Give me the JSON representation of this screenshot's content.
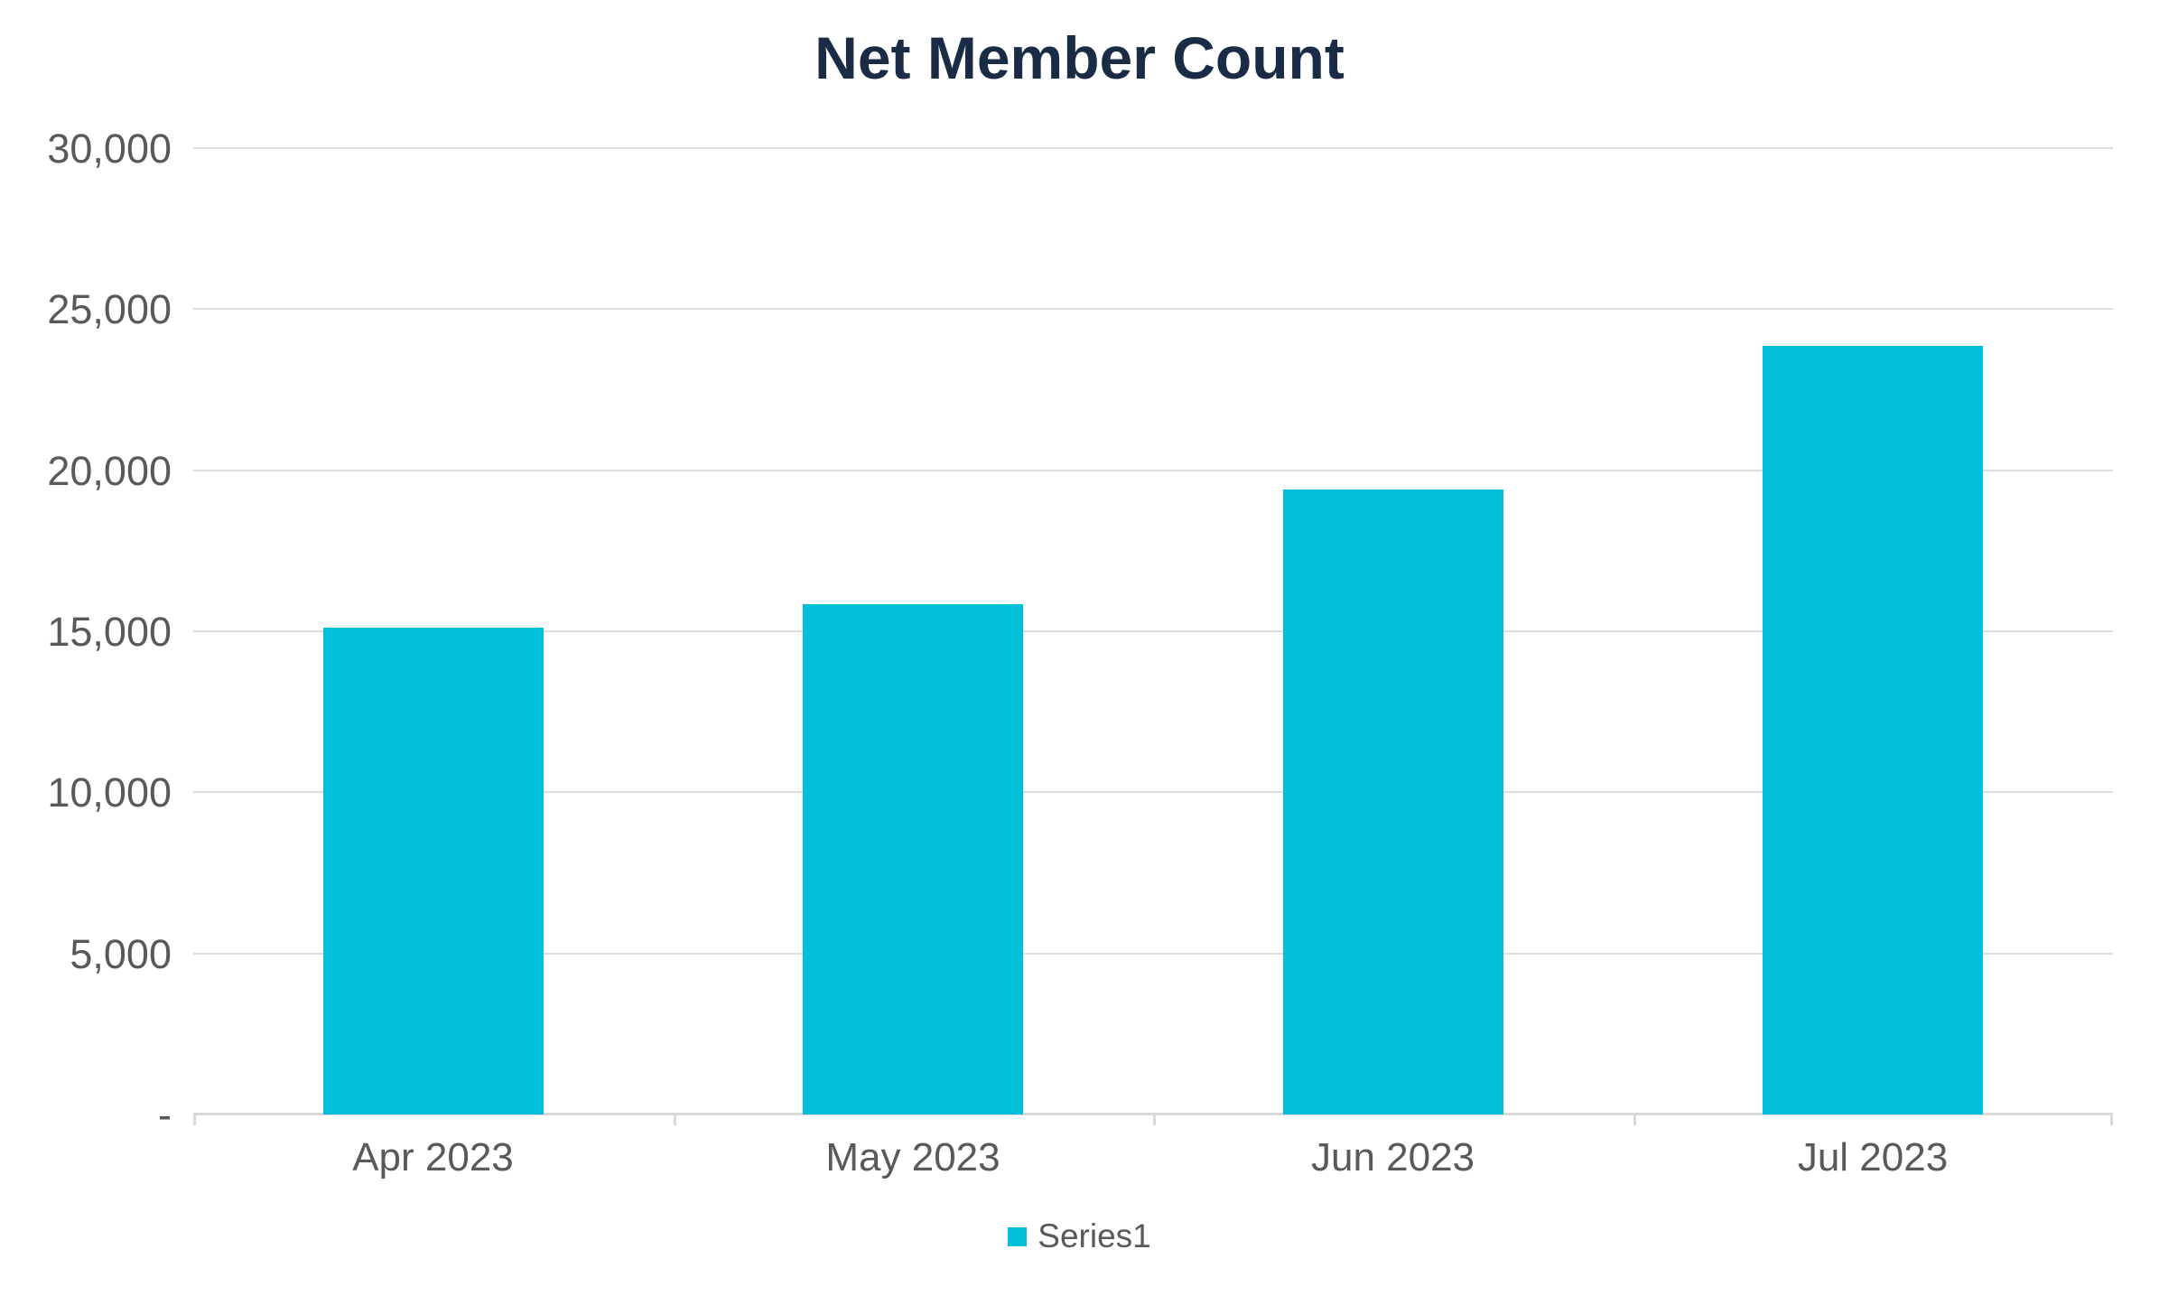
{
  "chart_data": {
    "type": "bar",
    "title": "Net Member Count",
    "categories": [
      "Apr 2023",
      "May 2023",
      "Jun 2023",
      "Jul 2023"
    ],
    "series": [
      {
        "name": "Series1",
        "values": [
          15100,
          15850,
          19400,
          23850
        ]
      }
    ],
    "xlabel": "",
    "ylabel": "",
    "ylim": [
      0,
      30000
    ],
    "ytick_interval": 5000,
    "ytick_labels_bottom_up": [
      "-",
      "5,000",
      "10,000",
      "15,000",
      "20,000",
      "25,000",
      "30,000"
    ],
    "grid": true,
    "legend_position": "bottom"
  },
  "colors": {
    "bar": "#00BFDB",
    "title_text": "#1A2B45",
    "axis_text": "#595959",
    "gridline": "#DCDCDC",
    "axis_line": "#D9D9D9"
  },
  "legend": {
    "items": [
      {
        "label": "Series1",
        "swatch": "legend-swatch-series1"
      }
    ]
  }
}
